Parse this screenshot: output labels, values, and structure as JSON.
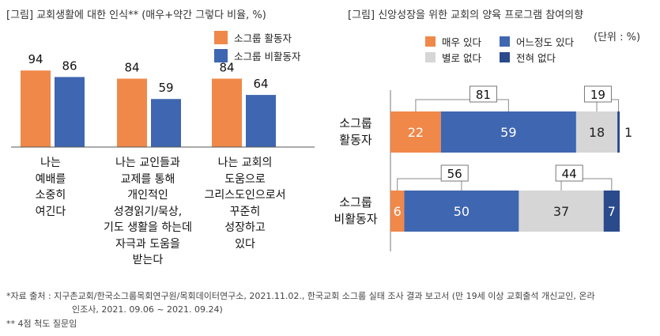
{
  "colors": {
    "orange": "#F0884A",
    "blue": "#3F66B0",
    "gray": "#D6D6D6",
    "navy": "#2B4A8C"
  },
  "chart_data": [
    {
      "type": "bar",
      "title": "[그림] 교회생활에 대한 인식** (매우+약간 그렇다 비율, %)",
      "categories": [
        [
          "나는",
          "예배를",
          "소중히",
          "여긴다"
        ],
        [
          "나는 교인들과",
          "교제를 통해",
          "개인적인",
          "성경읽기/묵상,",
          "기도 생활을 하는데",
          "자극과 도움을",
          "받는다"
        ],
        [
          "나는 교회의",
          "도움으로",
          "그리스도인으로서",
          "꾸준히",
          "성장하고",
          "있다"
        ]
      ],
      "series": [
        {
          "name": "소그룹 활동자",
          "color_key": "orange",
          "values": [
            94,
            84,
            84
          ]
        },
        {
          "name": "소그룹 비활동자",
          "color_key": "blue",
          "values": [
            86,
            59,
            64
          ]
        }
      ],
      "ylim": [
        0,
        100
      ]
    },
    {
      "type": "bar",
      "orientation": "horizontal-stacked",
      "title": "[그림] 신앙성장을 위한 교회의 양육 프로그램 참여의향",
      "subtitle": "(단위 : %)",
      "legend": [
        {
          "name": "매우 있다",
          "color_key": "orange"
        },
        {
          "name": "어느정도 있다",
          "color_key": "blue"
        },
        {
          "name": "별로 없다",
          "color_key": "gray"
        },
        {
          "name": "전혀 없다",
          "color_key": "navy"
        }
      ],
      "rows": [
        {
          "label": [
            "소그룹",
            "활동자"
          ],
          "values": [
            22,
            59,
            18,
            1
          ],
          "positive_total": "81",
          "negative_total": "19"
        },
        {
          "label": [
            "소그룹",
            "비활동자"
          ],
          "values": [
            6,
            50,
            37,
            7
          ],
          "positive_total": "56",
          "negative_total": "44"
        }
      ],
      "xlim": [
        0,
        100
      ]
    }
  ],
  "footnotes": {
    "source_line1": "*자료 출처 : 지구촌교회/한국소그룹목회연구원/목회데이터연구소, 2021.11.02., 한국교회 소그룹 실태 조사 결과 보고서 (만 19세 이상 교회출석 개신교인, 온라",
    "source_line2": "인조사, 2021. 09.06 ~ 2021. 09.24)",
    "note": "** 4점 척도 질문임"
  }
}
